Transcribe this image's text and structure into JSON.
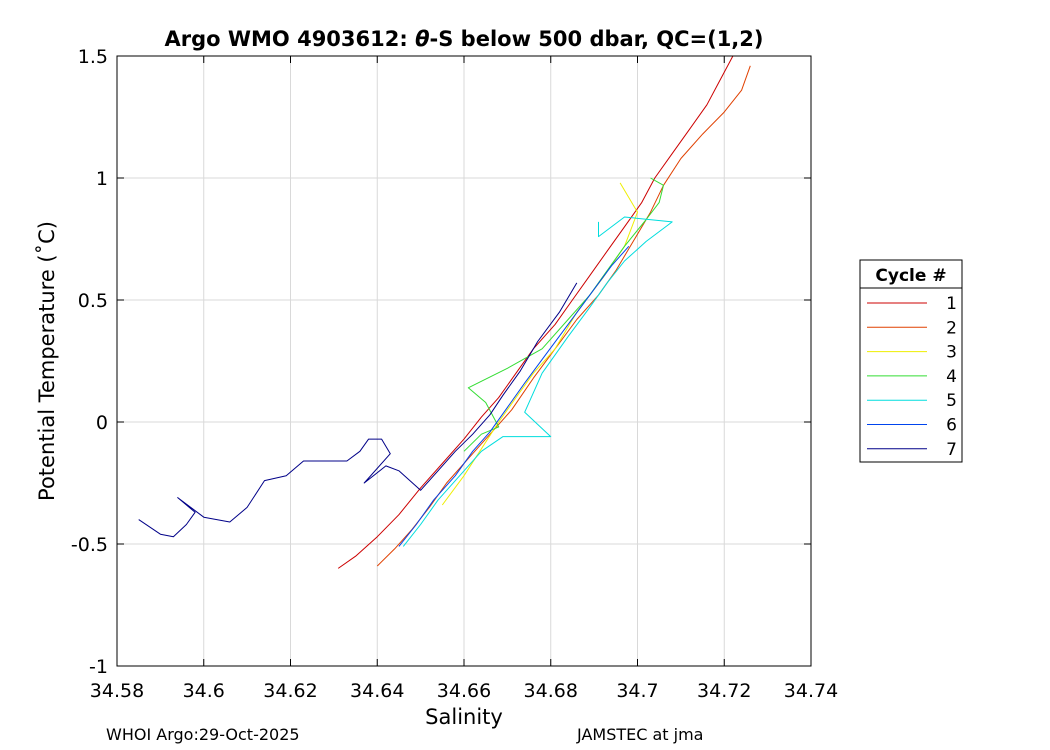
{
  "chart_data": {
    "type": "line",
    "title_main": "Argo WMO 4903612: ",
    "title_theta": "θ",
    "title_rest": "-S below 500 dbar,  QC=(1,2)",
    "xlabel": "Salinity",
    "ylabel": "Potential Temperature (˚C)",
    "xlim": [
      34.58,
      34.74
    ],
    "ylim": [
      -1,
      1.5
    ],
    "x_ticks": [
      34.58,
      34.6,
      34.62,
      34.64,
      34.66,
      34.68,
      34.7,
      34.72,
      34.74
    ],
    "x_tick_labels": [
      "34.58",
      "34.6",
      "34.62",
      "34.64",
      "34.66",
      "34.68",
      "34.7",
      "34.72",
      "34.74"
    ],
    "y_ticks": [
      1.5,
      1,
      0.5,
      0,
      -0.5,
      -1
    ],
    "y_tick_labels": [
      "1.5",
      "1",
      "0.5",
      "0",
      "-0.5",
      "-1"
    ],
    "grid": true,
    "legend_title": "Cycle #",
    "legend_position": "right-outside",
    "series": [
      {
        "name": "1",
        "color": "#cc0000",
        "points": [
          [
            34.631,
            -0.6
          ],
          [
            34.635,
            -0.55
          ],
          [
            34.64,
            -0.47
          ],
          [
            34.645,
            -0.38
          ],
          [
            34.65,
            -0.27
          ],
          [
            34.655,
            -0.17
          ],
          [
            34.66,
            -0.07
          ],
          [
            34.664,
            0.02
          ],
          [
            34.668,
            0.1
          ],
          [
            34.672,
            0.2
          ],
          [
            34.676,
            0.3
          ],
          [
            34.681,
            0.4
          ],
          [
            34.685,
            0.5
          ],
          [
            34.689,
            0.6
          ],
          [
            34.693,
            0.7
          ],
          [
            34.697,
            0.8
          ],
          [
            34.701,
            0.9
          ],
          [
            34.704,
            1.0
          ],
          [
            34.708,
            1.1
          ],
          [
            34.712,
            1.2
          ],
          [
            34.716,
            1.3
          ],
          [
            34.719,
            1.4
          ],
          [
            34.722,
            1.5
          ]
        ]
      },
      {
        "name": "2",
        "color": "#e04000",
        "points": [
          [
            34.64,
            -0.59
          ],
          [
            34.644,
            -0.52
          ],
          [
            34.648,
            -0.44
          ],
          [
            34.652,
            -0.35
          ],
          [
            34.656,
            -0.25
          ],
          [
            34.661,
            -0.15
          ],
          [
            34.666,
            -0.05
          ],
          [
            34.671,
            0.05
          ],
          [
            34.676,
            0.18
          ],
          [
            34.681,
            0.3
          ],
          [
            34.686,
            0.42
          ],
          [
            34.691,
            0.52
          ],
          [
            34.695,
            0.62
          ],
          [
            34.699,
            0.74
          ],
          [
            34.703,
            0.86
          ],
          [
            34.706,
            0.97
          ],
          [
            34.71,
            1.08
          ],
          [
            34.715,
            1.18
          ],
          [
            34.72,
            1.27
          ],
          [
            34.724,
            1.36
          ],
          [
            34.726,
            1.46
          ]
        ]
      },
      {
        "name": "3",
        "color": "#eeee00",
        "points": [
          [
            34.655,
            -0.34
          ],
          [
            34.66,
            -0.22
          ],
          [
            34.664,
            -0.11
          ],
          [
            34.668,
            0.0
          ],
          [
            34.672,
            0.1
          ],
          [
            34.676,
            0.2
          ],
          [
            34.681,
            0.3
          ],
          [
            34.686,
            0.45
          ],
          [
            34.692,
            0.59
          ],
          [
            34.697,
            0.72
          ],
          [
            34.7,
            0.86
          ],
          [
            34.696,
            0.98
          ]
        ]
      },
      {
        "name": "4",
        "color": "#33dd33",
        "points": [
          [
            34.66,
            -0.12
          ],
          [
            34.664,
            -0.05
          ],
          [
            34.668,
            -0.02
          ],
          [
            34.665,
            0.08
          ],
          [
            34.661,
            0.14
          ],
          [
            34.67,
            0.22
          ],
          [
            34.678,
            0.3
          ],
          [
            34.684,
            0.42
          ],
          [
            34.689,
            0.52
          ],
          [
            34.693,
            0.62
          ],
          [
            34.697,
            0.72
          ],
          [
            34.702,
            0.83
          ],
          [
            34.705,
            0.9
          ],
          [
            34.706,
            0.97
          ],
          [
            34.703,
            1.0
          ]
        ]
      },
      {
        "name": "5",
        "color": "#00dddd",
        "points": [
          [
            34.646,
            -0.51
          ],
          [
            34.65,
            -0.42
          ],
          [
            34.654,
            -0.32
          ],
          [
            34.659,
            -0.22
          ],
          [
            34.664,
            -0.12
          ],
          [
            34.669,
            -0.06
          ],
          [
            34.68,
            -0.06
          ],
          [
            34.674,
            0.04
          ],
          [
            34.678,
            0.2
          ],
          [
            34.684,
            0.35
          ],
          [
            34.689,
            0.47
          ],
          [
            34.693,
            0.57
          ],
          [
            34.697,
            0.66
          ],
          [
            34.702,
            0.74
          ],
          [
            34.708,
            0.82
          ],
          [
            34.697,
            0.84
          ],
          [
            34.691,
            0.76
          ],
          [
            34.691,
            0.82
          ]
        ]
      },
      {
        "name": "6",
        "color": "#0044ee",
        "points": [
          [
            34.645,
            -0.51
          ],
          [
            34.649,
            -0.42
          ],
          [
            34.653,
            -0.32
          ],
          [
            34.658,
            -0.22
          ],
          [
            34.662,
            -0.12
          ],
          [
            34.666,
            -0.04
          ],
          [
            34.67,
            0.06
          ],
          [
            34.674,
            0.16
          ],
          [
            34.679,
            0.28
          ],
          [
            34.684,
            0.4
          ],
          [
            34.689,
            0.52
          ],
          [
            34.694,
            0.64
          ],
          [
            34.698,
            0.72
          ]
        ]
      },
      {
        "name": "7",
        "color": "#000088",
        "points": [
          [
            34.585,
            -0.4
          ],
          [
            34.59,
            -0.46
          ],
          [
            34.593,
            -0.47
          ],
          [
            34.596,
            -0.42
          ],
          [
            34.598,
            -0.37
          ],
          [
            34.594,
            -0.31
          ],
          [
            34.6,
            -0.39
          ],
          [
            34.606,
            -0.41
          ],
          [
            34.61,
            -0.35
          ],
          [
            34.614,
            -0.24
          ],
          [
            34.619,
            -0.22
          ],
          [
            34.623,
            -0.16
          ],
          [
            34.633,
            -0.16
          ],
          [
            34.636,
            -0.12
          ],
          [
            34.638,
            -0.07
          ],
          [
            34.641,
            -0.07
          ],
          [
            34.643,
            -0.13
          ],
          [
            34.637,
            -0.25
          ],
          [
            34.642,
            -0.18
          ],
          [
            34.645,
            -0.2
          ],
          [
            34.65,
            -0.28
          ],
          [
            34.654,
            -0.2
          ],
          [
            34.658,
            -0.12
          ],
          [
            34.662,
            -0.05
          ],
          [
            34.666,
            0.03
          ],
          [
            34.669,
            0.11
          ],
          [
            34.673,
            0.21
          ],
          [
            34.677,
            0.33
          ],
          [
            34.682,
            0.45
          ],
          [
            34.686,
            0.57
          ]
        ]
      }
    ]
  },
  "footer": {
    "left": "WHOI Argo:29-Oct-2025",
    "right": "JAMSTEC at jma"
  }
}
